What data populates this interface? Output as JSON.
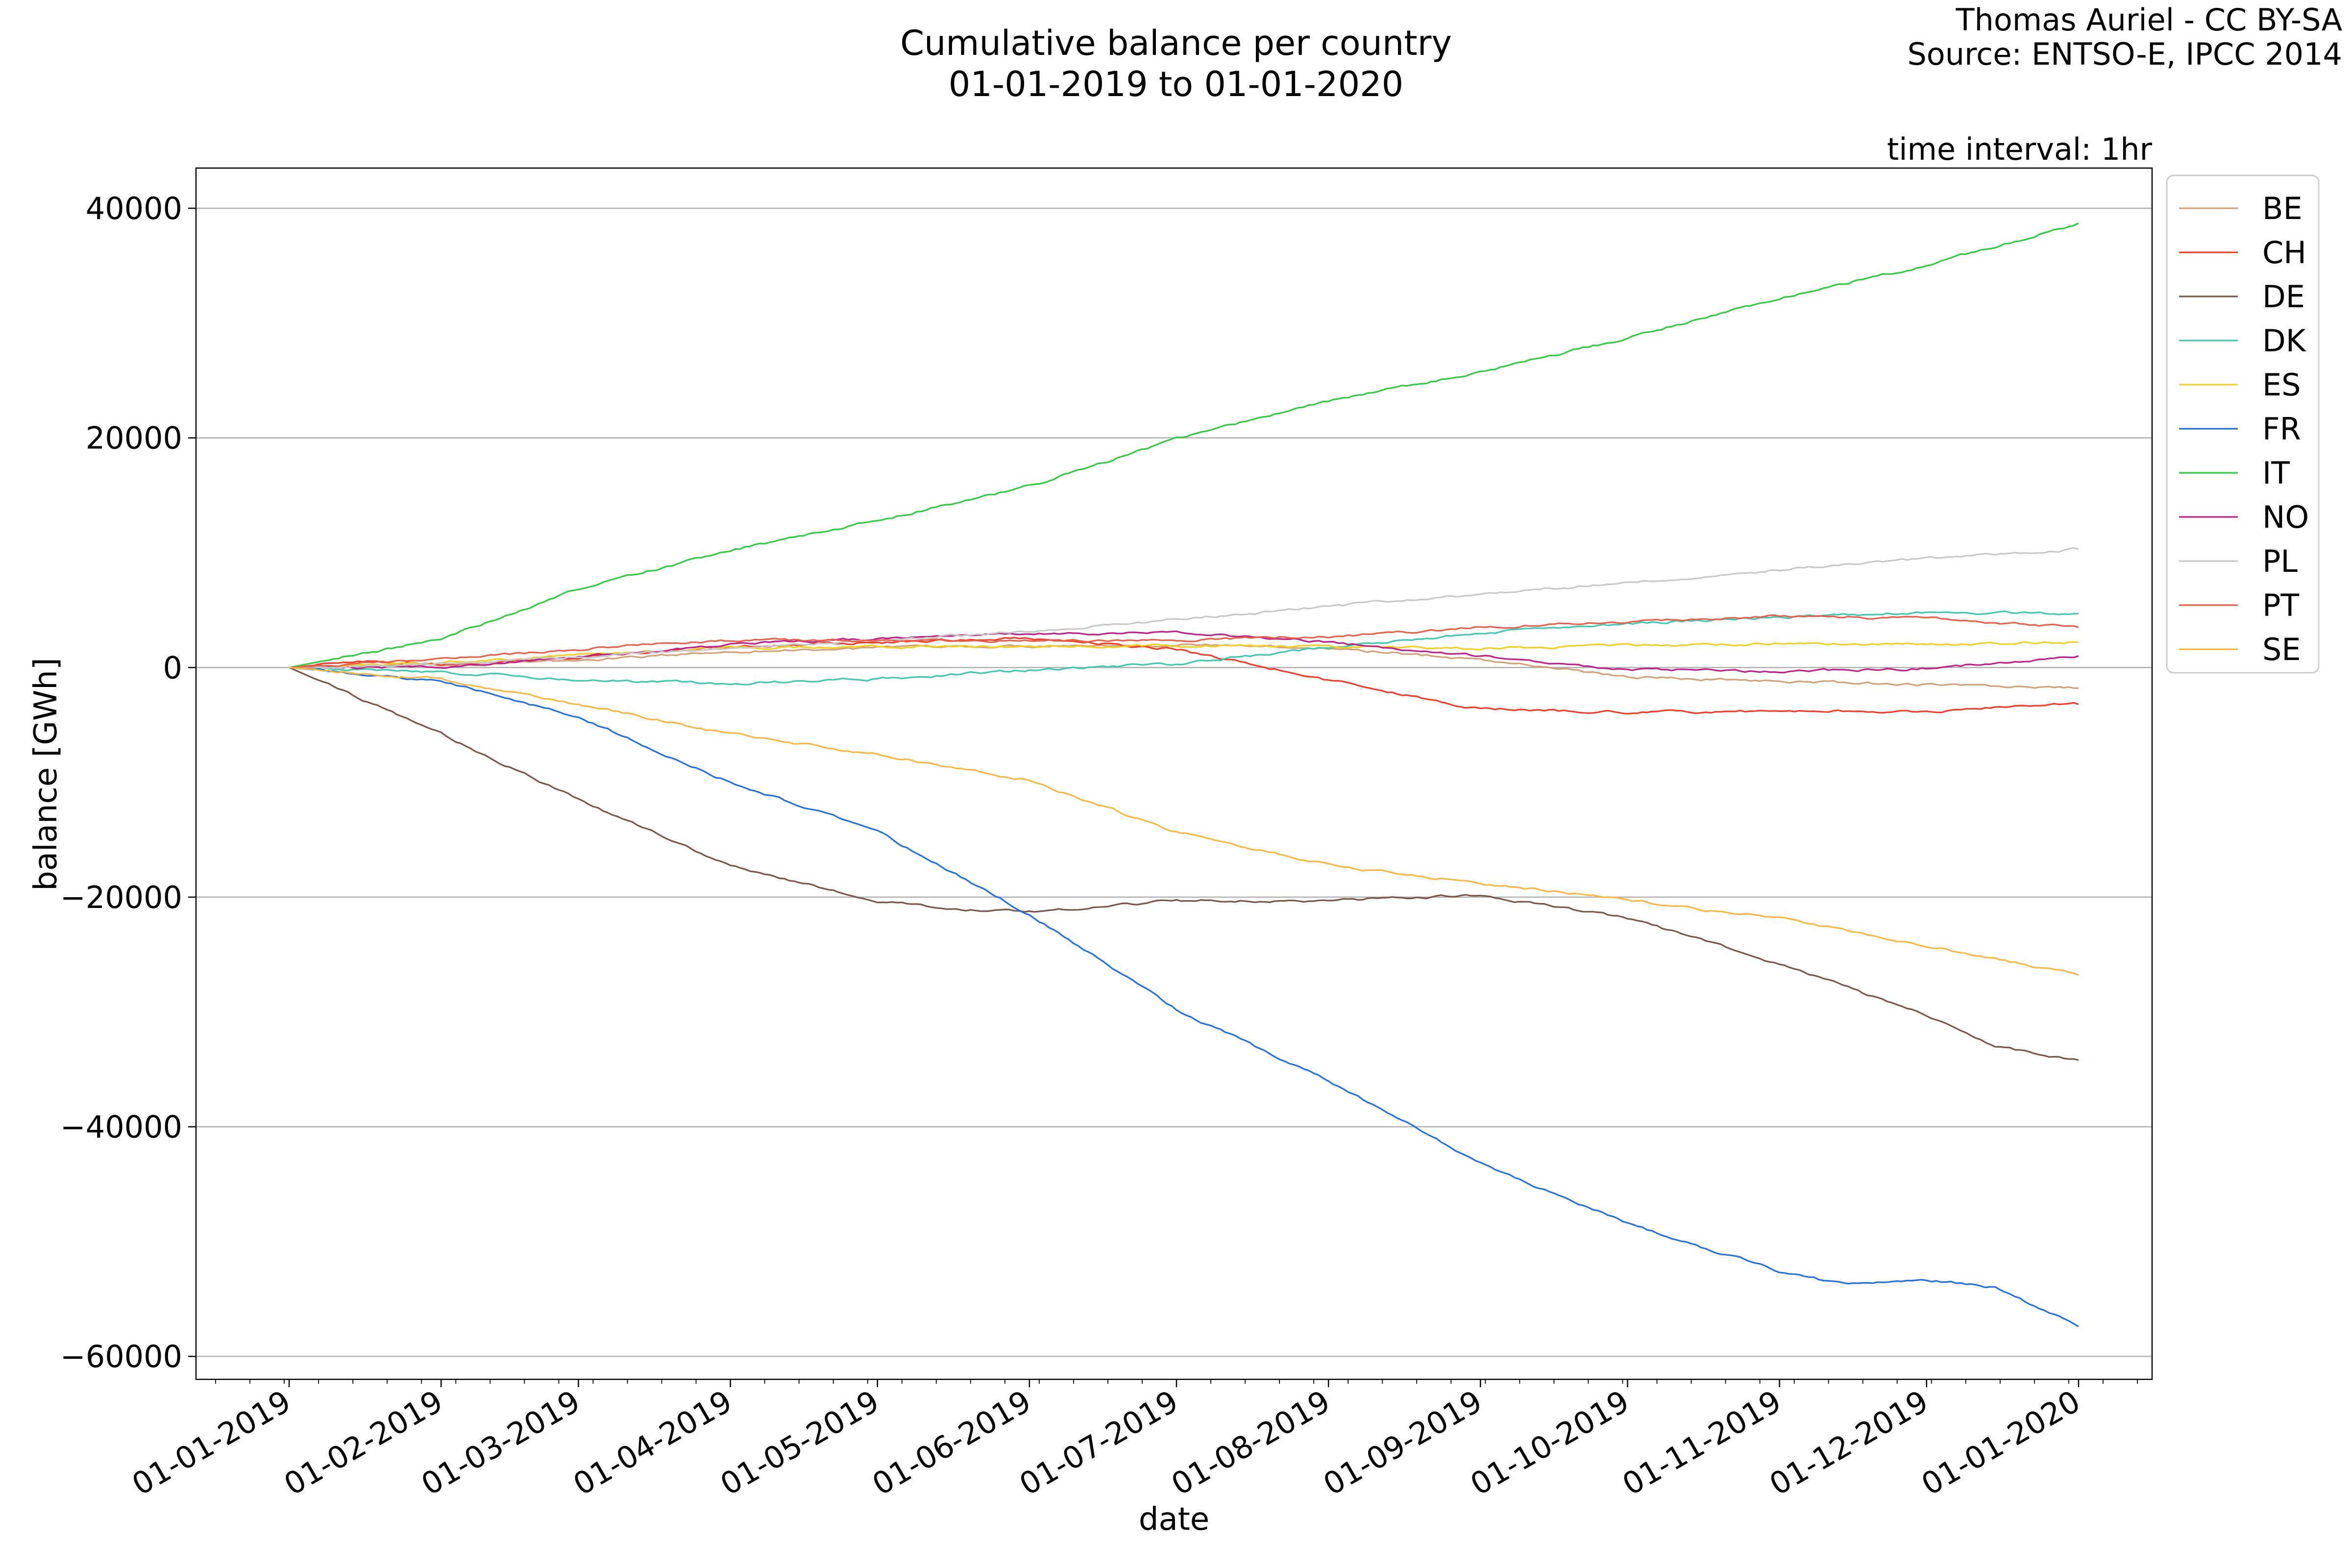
{
  "chart_data": {
    "type": "line",
    "title": [
      "Cumulative balance per country",
      "01-01-2019 to 01-01-2020"
    ],
    "credit": [
      "Thomas Auriel - CC BY-SA",
      "Source: ENTSO-E, IPCC 2014"
    ],
    "annotation": "time interval: 1hr",
    "xlabel": "date",
    "ylabel": "balance [GWh]",
    "x_ticks": [
      "01-01-2019",
      "01-02-2019",
      "01-03-2019",
      "01-04-2019",
      "01-05-2019",
      "01-06-2019",
      "01-07-2019",
      "01-08-2019",
      "01-09-2019",
      "01-10-2019",
      "01-11-2019",
      "01-12-2019",
      "01-01-2020"
    ],
    "y_ticks": [
      40000,
      20000,
      0,
      -20000,
      -40000,
      -60000
    ],
    "xlim": [
      "2018-12-13",
      "2020-01-16"
    ],
    "ylim": [
      -62000,
      43500
    ],
    "grid": "horizontal",
    "legend_position": "upper-right-outside",
    "series": [
      {
        "name": "BE",
        "color": "#d2a178",
        "points": [
          [
            "2019-01-01",
            0
          ],
          [
            "2019-02-01",
            200
          ],
          [
            "2019-03-01",
            600
          ],
          [
            "2019-04-01",
            1400
          ],
          [
            "2019-05-01",
            1700
          ],
          [
            "2019-06-01",
            1900
          ],
          [
            "2019-07-01",
            2000
          ],
          [
            "2019-08-01",
            1700
          ],
          [
            "2019-09-01",
            700
          ],
          [
            "2019-10-01",
            -800
          ],
          [
            "2019-11-01",
            -1200
          ],
          [
            "2019-12-01",
            -1500
          ],
          [
            "2020-01-01",
            -1800
          ]
        ]
      },
      {
        "name": "CH",
        "color": "#f03c28",
        "points": [
          [
            "2019-01-01",
            0
          ],
          [
            "2019-01-15",
            500
          ],
          [
            "2019-02-01",
            300
          ],
          [
            "2019-03-01",
            900
          ],
          [
            "2019-04-01",
            1800
          ],
          [
            "2019-05-01",
            2200
          ],
          [
            "2019-06-01",
            2600
          ],
          [
            "2019-07-01",
            1600
          ],
          [
            "2019-08-01",
            -1100
          ],
          [
            "2019-09-01",
            -3600
          ],
          [
            "2019-10-01",
            -3900
          ],
          [
            "2019-11-01",
            -3800
          ],
          [
            "2019-12-01",
            -3800
          ],
          [
            "2020-01-01",
            -3200
          ]
        ]
      },
      {
        "name": "DE",
        "color": "#7a5446",
        "points": [
          [
            "2019-01-01",
            0
          ],
          [
            "2019-02-01",
            -5800
          ],
          [
            "2019-03-01",
            -11500
          ],
          [
            "2019-04-01",
            -17300
          ],
          [
            "2019-05-01",
            -20300
          ],
          [
            "2019-05-15",
            -21000
          ],
          [
            "2019-06-01",
            -21300
          ],
          [
            "2019-07-01",
            -20300
          ],
          [
            "2019-08-01",
            -20300
          ],
          [
            "2019-09-01",
            -19800
          ],
          [
            "2019-10-01",
            -21800
          ],
          [
            "2019-11-01",
            -25800
          ],
          [
            "2019-12-01",
            -30300
          ],
          [
            "2019-12-15",
            -33000
          ],
          [
            "2020-01-01",
            -34200
          ]
        ]
      },
      {
        "name": "DK",
        "color": "#40c8b0",
        "points": [
          [
            "2019-01-01",
            0
          ],
          [
            "2019-02-01",
            -400
          ],
          [
            "2019-03-01",
            -1100
          ],
          [
            "2019-04-01",
            -1400
          ],
          [
            "2019-05-01",
            -1000
          ],
          [
            "2019-06-01",
            -200
          ],
          [
            "2019-07-01",
            300
          ],
          [
            "2019-08-01",
            1800
          ],
          [
            "2019-09-01",
            3000
          ],
          [
            "2019-10-01",
            3800
          ],
          [
            "2019-11-01",
            4400
          ],
          [
            "2019-12-01",
            4800
          ],
          [
            "2020-01-01",
            4700
          ]
        ]
      },
      {
        "name": "ES",
        "color": "#f0d020",
        "points": [
          [
            "2019-01-01",
            0
          ],
          [
            "2019-02-01",
            400
          ],
          [
            "2019-03-01",
            1100
          ],
          [
            "2019-04-01",
            1700
          ],
          [
            "2019-05-01",
            1800
          ],
          [
            "2019-06-01",
            1800
          ],
          [
            "2019-07-01",
            1900
          ],
          [
            "2019-08-01",
            1800
          ],
          [
            "2019-09-01",
            1700
          ],
          [
            "2019-10-01",
            1900
          ],
          [
            "2019-11-01",
            2100
          ],
          [
            "2019-12-01",
            2000
          ],
          [
            "2020-01-01",
            2200
          ]
        ]
      },
      {
        "name": "FR",
        "color": "#2070e0",
        "points": [
          [
            "2019-01-01",
            0
          ],
          [
            "2019-02-01",
            -1200
          ],
          [
            "2019-03-01",
            -4300
          ],
          [
            "2019-04-01",
            -10000
          ],
          [
            "2019-05-01",
            -14300
          ],
          [
            "2019-06-01",
            -21500
          ],
          [
            "2019-07-01",
            -29800
          ],
          [
            "2019-08-01",
            -36000
          ],
          [
            "2019-09-01",
            -43200
          ],
          [
            "2019-10-01",
            -48400
          ],
          [
            "2019-11-01",
            -52600
          ],
          [
            "2019-11-15",
            -53800
          ],
          [
            "2019-12-01",
            -53300
          ],
          [
            "2019-12-15",
            -54000
          ],
          [
            "2020-01-01",
            -57400
          ]
        ]
      },
      {
        "name": "IT",
        "color": "#2ecc40",
        "points": [
          [
            "2019-01-01",
            0
          ],
          [
            "2019-02-01",
            2500
          ],
          [
            "2019-03-01",
            6800
          ],
          [
            "2019-04-01",
            10200
          ],
          [
            "2019-05-01",
            12800
          ],
          [
            "2019-06-01",
            15800
          ],
          [
            "2019-07-01",
            19900
          ],
          [
            "2019-08-01",
            23200
          ],
          [
            "2019-09-01",
            25700
          ],
          [
            "2019-10-01",
            28700
          ],
          [
            "2019-11-01",
            32200
          ],
          [
            "2019-12-01",
            35000
          ],
          [
            "2020-01-01",
            38700
          ]
        ]
      },
      {
        "name": "NO",
        "color": "#c0208a",
        "points": [
          [
            "2019-01-01",
            0
          ],
          [
            "2019-02-01",
            100
          ],
          [
            "2019-03-01",
            900
          ],
          [
            "2019-04-01",
            2000
          ],
          [
            "2019-05-01",
            2500
          ],
          [
            "2019-06-01",
            2900
          ],
          [
            "2019-07-01",
            3100
          ],
          [
            "2019-08-01",
            2200
          ],
          [
            "2019-09-01",
            1000
          ],
          [
            "2019-10-01",
            -200
          ],
          [
            "2019-11-01",
            -300
          ],
          [
            "2019-12-01",
            -100
          ],
          [
            "2020-01-01",
            1000
          ]
        ]
      },
      {
        "name": "PL",
        "color": "#c8c8c8",
        "points": [
          [
            "2019-01-01",
            0
          ],
          [
            "2019-02-01",
            300
          ],
          [
            "2019-03-01",
            900
          ],
          [
            "2019-04-01",
            1700
          ],
          [
            "2019-05-01",
            2400
          ],
          [
            "2019-06-01",
            3100
          ],
          [
            "2019-07-01",
            4200
          ],
          [
            "2019-08-01",
            5300
          ],
          [
            "2019-09-01",
            6400
          ],
          [
            "2019-10-01",
            7400
          ],
          [
            "2019-11-01",
            8500
          ],
          [
            "2019-12-01",
            9500
          ],
          [
            "2020-01-01",
            10300
          ]
        ]
      },
      {
        "name": "PT",
        "color": "#e8604a",
        "points": [
          [
            "2019-01-01",
            0
          ],
          [
            "2019-02-01",
            700
          ],
          [
            "2019-03-01",
            1600
          ],
          [
            "2019-04-01",
            2400
          ],
          [
            "2019-05-01",
            2300
          ],
          [
            "2019-06-01",
            2300
          ],
          [
            "2019-07-01",
            2400
          ],
          [
            "2019-08-01",
            2700
          ],
          [
            "2019-09-01",
            3500
          ],
          [
            "2019-10-01",
            4000
          ],
          [
            "2019-11-01",
            4500
          ],
          [
            "2019-12-01",
            4300
          ],
          [
            "2020-01-01",
            3500
          ]
        ]
      },
      {
        "name": "SE",
        "color": "#f8b840",
        "points": [
          [
            "2019-01-01",
            0
          ],
          [
            "2019-02-01",
            -1000
          ],
          [
            "2019-03-01",
            -3200
          ],
          [
            "2019-04-01",
            -5800
          ],
          [
            "2019-05-01",
            -7600
          ],
          [
            "2019-06-01",
            -9800
          ],
          [
            "2019-07-01",
            -14300
          ],
          [
            "2019-08-01",
            -17200
          ],
          [
            "2019-09-01",
            -18800
          ],
          [
            "2019-10-01",
            -20200
          ],
          [
            "2019-11-01",
            -21900
          ],
          [
            "2019-12-01",
            -24200
          ],
          [
            "2020-01-01",
            -26800
          ]
        ]
      }
    ]
  }
}
